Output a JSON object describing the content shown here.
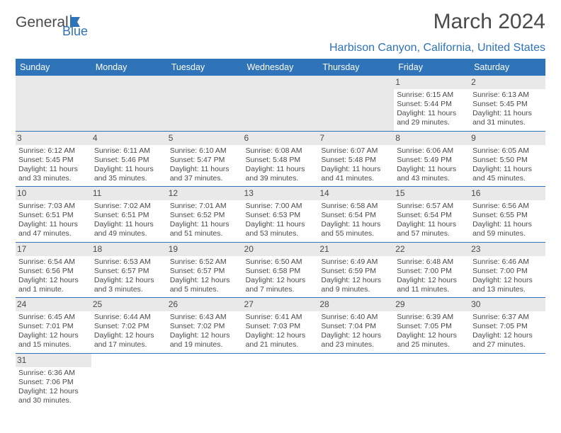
{
  "logo": {
    "main": "General",
    "sub": "Blue"
  },
  "title": "March 2024",
  "location": "Harbison Canyon, California, United States",
  "colors": {
    "brand_blue": "#2f73b8",
    "text_gray": "#4a4a4a",
    "cell_gray": "#e9e9e9",
    "background": "#ffffff"
  },
  "typography": {
    "title_fontsize": 30,
    "location_fontsize": 16,
    "header_fontsize": 12.5,
    "cell_fontsize": 10.5,
    "daynum_fontsize": 12
  },
  "day_headers": [
    "Sunday",
    "Monday",
    "Tuesday",
    "Wednesday",
    "Thursday",
    "Friday",
    "Saturday"
  ],
  "weeks": [
    [
      {
        "empty": true
      },
      {
        "empty": true
      },
      {
        "empty": true
      },
      {
        "empty": true
      },
      {
        "empty": true
      },
      {
        "num": "1",
        "sunrise": "Sunrise: 6:15 AM",
        "sunset": "Sunset: 5:44 PM",
        "daylight": "Daylight: 11 hours and 29 minutes."
      },
      {
        "num": "2",
        "sunrise": "Sunrise: 6:13 AM",
        "sunset": "Sunset: 5:45 PM",
        "daylight": "Daylight: 11 hours and 31 minutes."
      }
    ],
    [
      {
        "num": "3",
        "sunrise": "Sunrise: 6:12 AM",
        "sunset": "Sunset: 5:45 PM",
        "daylight": "Daylight: 11 hours and 33 minutes."
      },
      {
        "num": "4",
        "sunrise": "Sunrise: 6:11 AM",
        "sunset": "Sunset: 5:46 PM",
        "daylight": "Daylight: 11 hours and 35 minutes."
      },
      {
        "num": "5",
        "sunrise": "Sunrise: 6:10 AM",
        "sunset": "Sunset: 5:47 PM",
        "daylight": "Daylight: 11 hours and 37 minutes."
      },
      {
        "num": "6",
        "sunrise": "Sunrise: 6:08 AM",
        "sunset": "Sunset: 5:48 PM",
        "daylight": "Daylight: 11 hours and 39 minutes."
      },
      {
        "num": "7",
        "sunrise": "Sunrise: 6:07 AM",
        "sunset": "Sunset: 5:48 PM",
        "daylight": "Daylight: 11 hours and 41 minutes."
      },
      {
        "num": "8",
        "sunrise": "Sunrise: 6:06 AM",
        "sunset": "Sunset: 5:49 PM",
        "daylight": "Daylight: 11 hours and 43 minutes."
      },
      {
        "num": "9",
        "sunrise": "Sunrise: 6:05 AM",
        "sunset": "Sunset: 5:50 PM",
        "daylight": "Daylight: 11 hours and 45 minutes."
      }
    ],
    [
      {
        "num": "10",
        "sunrise": "Sunrise: 7:03 AM",
        "sunset": "Sunset: 6:51 PM",
        "daylight": "Daylight: 11 hours and 47 minutes."
      },
      {
        "num": "11",
        "sunrise": "Sunrise: 7:02 AM",
        "sunset": "Sunset: 6:51 PM",
        "daylight": "Daylight: 11 hours and 49 minutes."
      },
      {
        "num": "12",
        "sunrise": "Sunrise: 7:01 AM",
        "sunset": "Sunset: 6:52 PM",
        "daylight": "Daylight: 11 hours and 51 minutes."
      },
      {
        "num": "13",
        "sunrise": "Sunrise: 7:00 AM",
        "sunset": "Sunset: 6:53 PM",
        "daylight": "Daylight: 11 hours and 53 minutes."
      },
      {
        "num": "14",
        "sunrise": "Sunrise: 6:58 AM",
        "sunset": "Sunset: 6:54 PM",
        "daylight": "Daylight: 11 hours and 55 minutes."
      },
      {
        "num": "15",
        "sunrise": "Sunrise: 6:57 AM",
        "sunset": "Sunset: 6:54 PM",
        "daylight": "Daylight: 11 hours and 57 minutes."
      },
      {
        "num": "16",
        "sunrise": "Sunrise: 6:56 AM",
        "sunset": "Sunset: 6:55 PM",
        "daylight": "Daylight: 11 hours and 59 minutes."
      }
    ],
    [
      {
        "num": "17",
        "sunrise": "Sunrise: 6:54 AM",
        "sunset": "Sunset: 6:56 PM",
        "daylight": "Daylight: 12 hours and 1 minute."
      },
      {
        "num": "18",
        "sunrise": "Sunrise: 6:53 AM",
        "sunset": "Sunset: 6:57 PM",
        "daylight": "Daylight: 12 hours and 3 minutes."
      },
      {
        "num": "19",
        "sunrise": "Sunrise: 6:52 AM",
        "sunset": "Sunset: 6:57 PM",
        "daylight": "Daylight: 12 hours and 5 minutes."
      },
      {
        "num": "20",
        "sunrise": "Sunrise: 6:50 AM",
        "sunset": "Sunset: 6:58 PM",
        "daylight": "Daylight: 12 hours and 7 minutes."
      },
      {
        "num": "21",
        "sunrise": "Sunrise: 6:49 AM",
        "sunset": "Sunset: 6:59 PM",
        "daylight": "Daylight: 12 hours and 9 minutes."
      },
      {
        "num": "22",
        "sunrise": "Sunrise: 6:48 AM",
        "sunset": "Sunset: 7:00 PM",
        "daylight": "Daylight: 12 hours and 11 minutes."
      },
      {
        "num": "23",
        "sunrise": "Sunrise: 6:46 AM",
        "sunset": "Sunset: 7:00 PM",
        "daylight": "Daylight: 12 hours and 13 minutes."
      }
    ],
    [
      {
        "num": "24",
        "sunrise": "Sunrise: 6:45 AM",
        "sunset": "Sunset: 7:01 PM",
        "daylight": "Daylight: 12 hours and 15 minutes."
      },
      {
        "num": "25",
        "sunrise": "Sunrise: 6:44 AM",
        "sunset": "Sunset: 7:02 PM",
        "daylight": "Daylight: 12 hours and 17 minutes."
      },
      {
        "num": "26",
        "sunrise": "Sunrise: 6:43 AM",
        "sunset": "Sunset: 7:02 PM",
        "daylight": "Daylight: 12 hours and 19 minutes."
      },
      {
        "num": "27",
        "sunrise": "Sunrise: 6:41 AM",
        "sunset": "Sunset: 7:03 PM",
        "daylight": "Daylight: 12 hours and 21 minutes."
      },
      {
        "num": "28",
        "sunrise": "Sunrise: 6:40 AM",
        "sunset": "Sunset: 7:04 PM",
        "daylight": "Daylight: 12 hours and 23 minutes."
      },
      {
        "num": "29",
        "sunrise": "Sunrise: 6:39 AM",
        "sunset": "Sunset: 7:05 PM",
        "daylight": "Daylight: 12 hours and 25 minutes."
      },
      {
        "num": "30",
        "sunrise": "Sunrise: 6:37 AM",
        "sunset": "Sunset: 7:05 PM",
        "daylight": "Daylight: 12 hours and 27 minutes."
      }
    ],
    [
      {
        "num": "31",
        "sunrise": "Sunrise: 6:36 AM",
        "sunset": "Sunset: 7:06 PM",
        "daylight": "Daylight: 12 hours and 30 minutes."
      },
      {
        "empty": true
      },
      {
        "empty": true
      },
      {
        "empty": true
      },
      {
        "empty": true
      },
      {
        "empty": true
      },
      {
        "empty": true
      }
    ]
  ]
}
